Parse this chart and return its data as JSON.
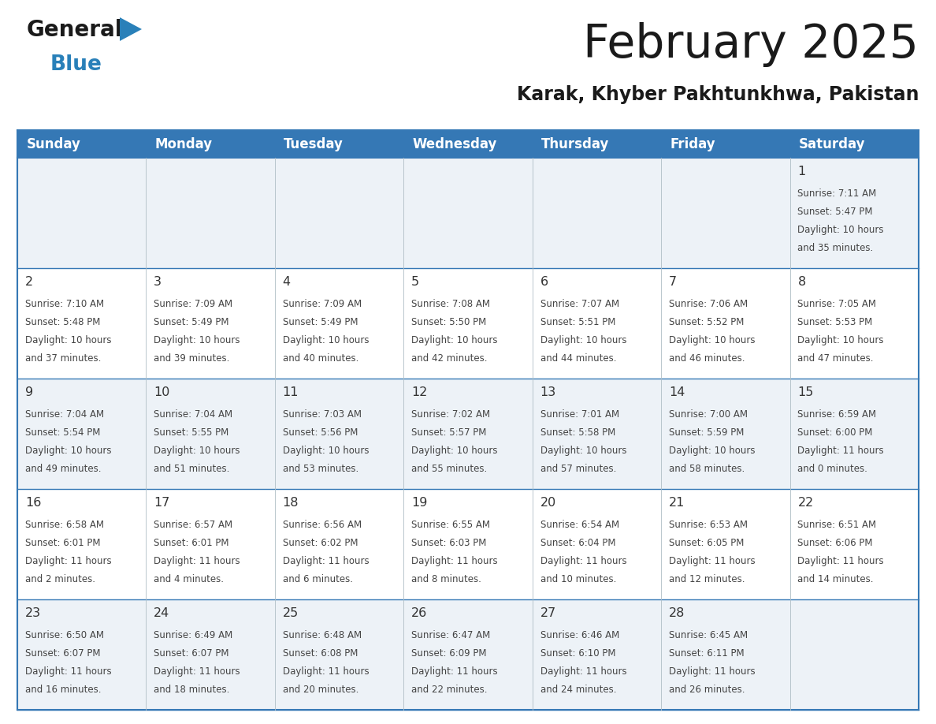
{
  "title": "February 2025",
  "subtitle": "Karak, Khyber Pakhtunkhwa, Pakistan",
  "header_bg_color": "#3578b5",
  "header_text_color": "#ffffff",
  "day_headers": [
    "Sunday",
    "Monday",
    "Tuesday",
    "Wednesday",
    "Thursday",
    "Friday",
    "Saturday"
  ],
  "days": [
    {
      "day": 1,
      "col": 6,
      "row": 0,
      "sunrise": "7:11 AM",
      "sunset": "5:47 PM",
      "daylight": "10 hours and 35 minutes."
    },
    {
      "day": 2,
      "col": 0,
      "row": 1,
      "sunrise": "7:10 AM",
      "sunset": "5:48 PM",
      "daylight": "10 hours and 37 minutes."
    },
    {
      "day": 3,
      "col": 1,
      "row": 1,
      "sunrise": "7:09 AM",
      "sunset": "5:49 PM",
      "daylight": "10 hours and 39 minutes."
    },
    {
      "day": 4,
      "col": 2,
      "row": 1,
      "sunrise": "7:09 AM",
      "sunset": "5:49 PM",
      "daylight": "10 hours and 40 minutes."
    },
    {
      "day": 5,
      "col": 3,
      "row": 1,
      "sunrise": "7:08 AM",
      "sunset": "5:50 PM",
      "daylight": "10 hours and 42 minutes."
    },
    {
      "day": 6,
      "col": 4,
      "row": 1,
      "sunrise": "7:07 AM",
      "sunset": "5:51 PM",
      "daylight": "10 hours and 44 minutes."
    },
    {
      "day": 7,
      "col": 5,
      "row": 1,
      "sunrise": "7:06 AM",
      "sunset": "5:52 PM",
      "daylight": "10 hours and 46 minutes."
    },
    {
      "day": 8,
      "col": 6,
      "row": 1,
      "sunrise": "7:05 AM",
      "sunset": "5:53 PM",
      "daylight": "10 hours and 47 minutes."
    },
    {
      "day": 9,
      "col": 0,
      "row": 2,
      "sunrise": "7:04 AM",
      "sunset": "5:54 PM",
      "daylight": "10 hours and 49 minutes."
    },
    {
      "day": 10,
      "col": 1,
      "row": 2,
      "sunrise": "7:04 AM",
      "sunset": "5:55 PM",
      "daylight": "10 hours and 51 minutes."
    },
    {
      "day": 11,
      "col": 2,
      "row": 2,
      "sunrise": "7:03 AM",
      "sunset": "5:56 PM",
      "daylight": "10 hours and 53 minutes."
    },
    {
      "day": 12,
      "col": 3,
      "row": 2,
      "sunrise": "7:02 AM",
      "sunset": "5:57 PM",
      "daylight": "10 hours and 55 minutes."
    },
    {
      "day": 13,
      "col": 4,
      "row": 2,
      "sunrise": "7:01 AM",
      "sunset": "5:58 PM",
      "daylight": "10 hours and 57 minutes."
    },
    {
      "day": 14,
      "col": 5,
      "row": 2,
      "sunrise": "7:00 AM",
      "sunset": "5:59 PM",
      "daylight": "10 hours and 58 minutes."
    },
    {
      "day": 15,
      "col": 6,
      "row": 2,
      "sunrise": "6:59 AM",
      "sunset": "6:00 PM",
      "daylight": "11 hours and 0 minutes."
    },
    {
      "day": 16,
      "col": 0,
      "row": 3,
      "sunrise": "6:58 AM",
      "sunset": "6:01 PM",
      "daylight": "11 hours and 2 minutes."
    },
    {
      "day": 17,
      "col": 1,
      "row": 3,
      "sunrise": "6:57 AM",
      "sunset": "6:01 PM",
      "daylight": "11 hours and 4 minutes."
    },
    {
      "day": 18,
      "col": 2,
      "row": 3,
      "sunrise": "6:56 AM",
      "sunset": "6:02 PM",
      "daylight": "11 hours and 6 minutes."
    },
    {
      "day": 19,
      "col": 3,
      "row": 3,
      "sunrise": "6:55 AM",
      "sunset": "6:03 PM",
      "daylight": "11 hours and 8 minutes."
    },
    {
      "day": 20,
      "col": 4,
      "row": 3,
      "sunrise": "6:54 AM",
      "sunset": "6:04 PM",
      "daylight": "11 hours and 10 minutes."
    },
    {
      "day": 21,
      "col": 5,
      "row": 3,
      "sunrise": "6:53 AM",
      "sunset": "6:05 PM",
      "daylight": "11 hours and 12 minutes."
    },
    {
      "day": 22,
      "col": 6,
      "row": 3,
      "sunrise": "6:51 AM",
      "sunset": "6:06 PM",
      "daylight": "11 hours and 14 minutes."
    },
    {
      "day": 23,
      "col": 0,
      "row": 4,
      "sunrise": "6:50 AM",
      "sunset": "6:07 PM",
      "daylight": "11 hours and 16 minutes."
    },
    {
      "day": 24,
      "col": 1,
      "row": 4,
      "sunrise": "6:49 AM",
      "sunset": "6:07 PM",
      "daylight": "11 hours and 18 minutes."
    },
    {
      "day": 25,
      "col": 2,
      "row": 4,
      "sunrise": "6:48 AM",
      "sunset": "6:08 PM",
      "daylight": "11 hours and 20 minutes."
    },
    {
      "day": 26,
      "col": 3,
      "row": 4,
      "sunrise": "6:47 AM",
      "sunset": "6:09 PM",
      "daylight": "11 hours and 22 minutes."
    },
    {
      "day": 27,
      "col": 4,
      "row": 4,
      "sunrise": "6:46 AM",
      "sunset": "6:10 PM",
      "daylight": "11 hours and 24 minutes."
    },
    {
      "day": 28,
      "col": 5,
      "row": 4,
      "sunrise": "6:45 AM",
      "sunset": "6:11 PM",
      "daylight": "11 hours and 26 minutes."
    }
  ],
  "num_rows": 5,
  "num_cols": 7,
  "logo_text1": "General",
  "logo_text2": "Blue",
  "logo_color1": "#1a1a1a",
  "logo_color2": "#2980b9",
  "triangle_color": "#2980b9",
  "separator_color": "#3578b5",
  "cell_text_color": "#444444",
  "day_number_color": "#333333",
  "grid_line_color": "#b0bec5",
  "row_bg_odd": "#edf2f7",
  "row_bg_even": "#ffffff",
  "title_color": "#1a1a1a",
  "subtitle_color": "#1a1a1a"
}
